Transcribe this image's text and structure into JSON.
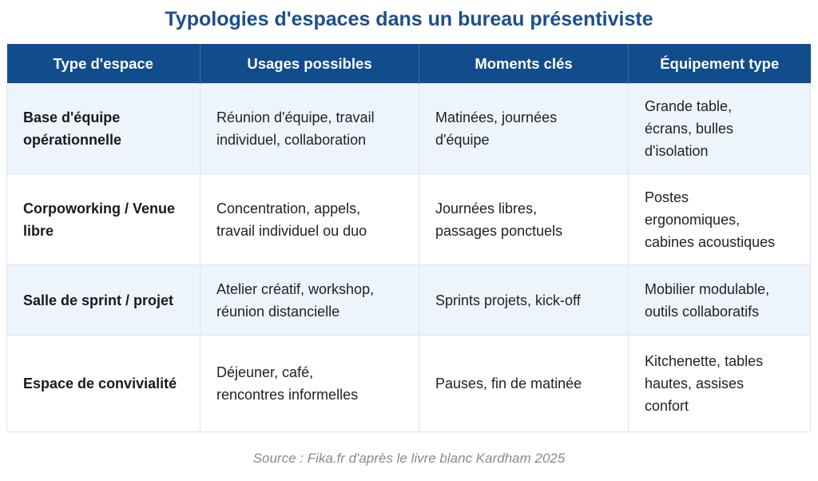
{
  "title": "Typologies d'espaces dans un bureau présentiviste",
  "table": {
    "header": [
      "Type d'espace",
      "Usages possibles",
      "Moments clés",
      "Équipement type"
    ],
    "rows": [
      [
        [
          "Base d'équipe",
          "opérationnelle"
        ],
        [
          "Réunion d'équipe, travail",
          "individuel, collaboration"
        ],
        [
          "Matinées, journées",
          "d'équipe"
        ],
        [
          "Grande table,",
          "écrans, bulles",
          "d'isolation"
        ]
      ],
      [
        [
          "Corpoworking / Venue",
          "libre"
        ],
        [
          "Concentration, appels,",
          "travail individuel ou duo"
        ],
        [
          "Journées libres,",
          "passages ponctuels"
        ],
        [
          "Postes",
          "ergonomiques,",
          "cabines acoustiques"
        ]
      ],
      [
        [
          "Salle de sprint / projet"
        ],
        [
          "Atelier créatif, workshop,",
          "réunion distancielle"
        ],
        [
          "Sprints projets, kick-off"
        ],
        [
          "Mobilier modulable,",
          "outils collaboratifs"
        ]
      ],
      [
        [
          "Espace de convivialité"
        ],
        [
          "Déjeuner, café,",
          "rencontres informelles"
        ],
        [
          "Pauses, fin de matinée"
        ],
        [
          "Kitchenette, tables",
          "hautes, assises",
          "confort"
        ]
      ]
    ]
  },
  "source": "Source : Fika.fr d'après le livre blanc Kardham 2025"
}
